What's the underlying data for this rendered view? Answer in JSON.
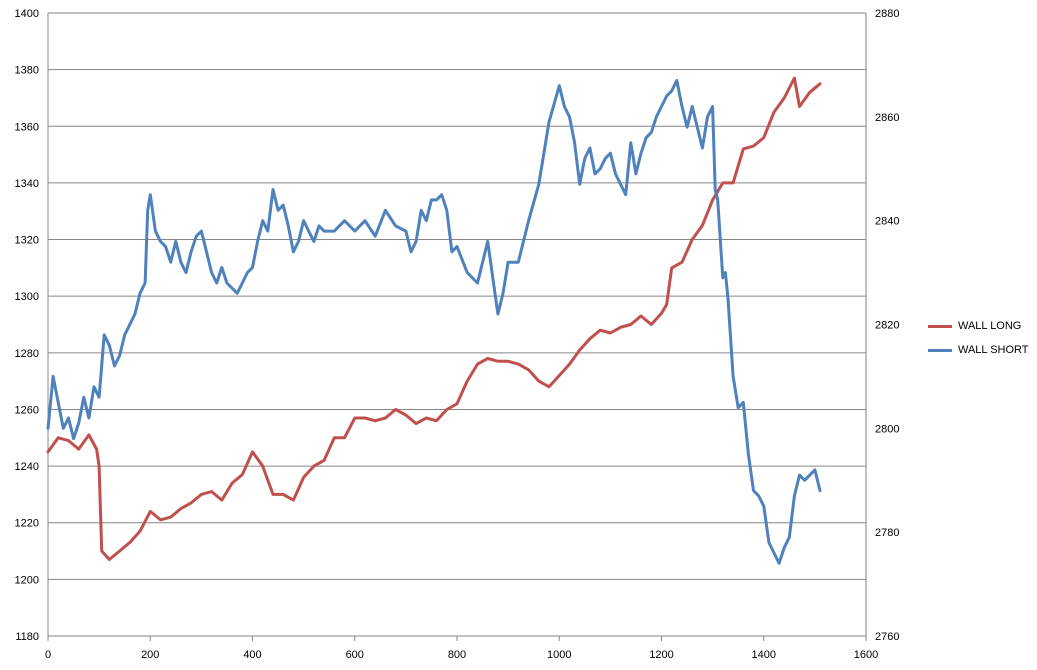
{
  "chart_data": {
    "type": "line",
    "title": "",
    "xlabel": "",
    "ylabel": "",
    "xlim": [
      0,
      1600
    ],
    "ylim_left": [
      1180,
      1400
    ],
    "ylim_right": [
      2760,
      2880
    ],
    "x_ticks": [
      "0",
      "200",
      "400",
      "600",
      "800",
      "1000",
      "1200",
      "1400",
      "1600"
    ],
    "y_ticks_left": [
      "1180",
      "1200",
      "1220",
      "1240",
      "1260",
      "1280",
      "1300",
      "1320",
      "1340",
      "1360",
      "1380",
      "1400"
    ],
    "y_ticks_right": [
      "2760",
      "2780",
      "2800",
      "2820",
      "2840",
      "2860",
      "2880"
    ],
    "grid": true,
    "legend_position": "right",
    "series": [
      {
        "name": "WALL LONG",
        "color": "#C0504D",
        "axis": "left",
        "x": [
          0,
          20,
          40,
          60,
          80,
          95,
          100,
          105,
          120,
          140,
          160,
          180,
          200,
          220,
          240,
          260,
          280,
          300,
          320,
          340,
          360,
          380,
          400,
          420,
          440,
          460,
          480,
          500,
          520,
          540,
          560,
          580,
          600,
          620,
          640,
          660,
          680,
          700,
          720,
          740,
          760,
          780,
          800,
          820,
          840,
          860,
          880,
          900,
          920,
          940,
          960,
          980,
          1000,
          1020,
          1040,
          1060,
          1080,
          1100,
          1120,
          1140,
          1160,
          1180,
          1200,
          1210,
          1220,
          1240,
          1260,
          1280,
          1300,
          1320,
          1340,
          1360,
          1380,
          1400,
          1420,
          1440,
          1460,
          1470,
          1490,
          1510
        ],
        "y": [
          1245,
          1250,
          1249,
          1246,
          1251,
          1246,
          1240,
          1210,
          1207,
          1210,
          1213,
          1217,
          1224,
          1221,
          1222,
          1225,
          1227,
          1230,
          1231,
          1228,
          1234,
          1237,
          1245,
          1240,
          1230,
          1230,
          1228,
          1236,
          1240,
          1242,
          1250,
          1250,
          1257,
          1257,
          1256,
          1257,
          1260,
          1258,
          1255,
          1257,
          1256,
          1260,
          1262,
          1270,
          1276,
          1278,
          1277,
          1277,
          1276,
          1274,
          1270,
          1268,
          1272,
          1276,
          1281,
          1285,
          1288,
          1287,
          1289,
          1290,
          1293,
          1290,
          1294,
          1297,
          1310,
          1312,
          1320,
          1325,
          1334,
          1340,
          1340,
          1352,
          1353,
          1356,
          1365,
          1370,
          1377,
          1367,
          1372,
          1375
        ]
      },
      {
        "name": "WALL SHORT",
        "color": "#4F81BD",
        "axis": "right",
        "x": [
          0,
          10,
          20,
          30,
          40,
          50,
          60,
          70,
          80,
          90,
          100,
          110,
          120,
          130,
          140,
          150,
          160,
          170,
          180,
          190,
          195,
          200,
          210,
          220,
          230,
          240,
          250,
          260,
          270,
          280,
          290,
          300,
          310,
          320,
          330,
          340,
          350,
          360,
          370,
          380,
          390,
          400,
          410,
          420,
          430,
          440,
          450,
          460,
          470,
          480,
          490,
          500,
          510,
          520,
          530,
          540,
          560,
          580,
          600,
          620,
          640,
          660,
          680,
          700,
          710,
          720,
          730,
          740,
          750,
          760,
          770,
          780,
          790,
          800,
          820,
          840,
          860,
          870,
          880,
          890,
          900,
          920,
          940,
          960,
          980,
          1000,
          1010,
          1020,
          1030,
          1040,
          1050,
          1060,
          1070,
          1080,
          1090,
          1100,
          1110,
          1120,
          1130,
          1140,
          1150,
          1160,
          1170,
          1180,
          1190,
          1200,
          1210,
          1220,
          1230,
          1240,
          1250,
          1260,
          1270,
          1280,
          1290,
          1300,
          1305,
          1310,
          1320,
          1325,
          1330,
          1340,
          1350,
          1360,
          1370,
          1380,
          1390,
          1400,
          1410,
          1420,
          1430,
          1440,
          1450,
          1460,
          1470,
          1480,
          1490,
          1500,
          1510
        ],
        "y": [
          2800,
          2810,
          2805,
          2800,
          2802,
          2798,
          2801,
          2806,
          2802,
          2808,
          2806,
          2818,
          2816,
          2812,
          2814,
          2818,
          2820,
          2822,
          2826,
          2828,
          2842,
          2845,
          2838,
          2836,
          2835,
          2832,
          2836,
          2832,
          2830,
          2834,
          2837,
          2838,
          2834,
          2830,
          2828,
          2831,
          2828,
          2827,
          2826,
          2828,
          2830,
          2831,
          2836,
          2840,
          2838,
          2846,
          2842,
          2843,
          2839,
          2834,
          2836,
          2840,
          2838,
          2836,
          2839,
          2838,
          2838,
          2840,
          2838,
          2840,
          2837,
          2842,
          2839,
          2838,
          2834,
          2836,
          2842,
          2840,
          2844,
          2844,
          2845,
          2842,
          2834,
          2835,
          2830,
          2828,
          2836,
          2829,
          2822,
          2826,
          2832,
          2832,
          2840,
          2847,
          2859,
          2866,
          2862,
          2860,
          2855,
          2847,
          2852,
          2854,
          2849,
          2850,
          2852,
          2853,
          2849,
          2847,
          2845,
          2855,
          2849,
          2853,
          2856,
          2857,
          2860,
          2862,
          2864,
          2865,
          2867,
          2862,
          2858,
          2862,
          2858,
          2854,
          2860,
          2862,
          2846,
          2844,
          2829,
          2830,
          2825,
          2810,
          2804,
          2805,
          2795,
          2788,
          2787,
          2785,
          2778,
          2776,
          2774,
          2777,
          2779,
          2787,
          2791,
          2790,
          2791,
          2792,
          2788
        ]
      }
    ]
  }
}
